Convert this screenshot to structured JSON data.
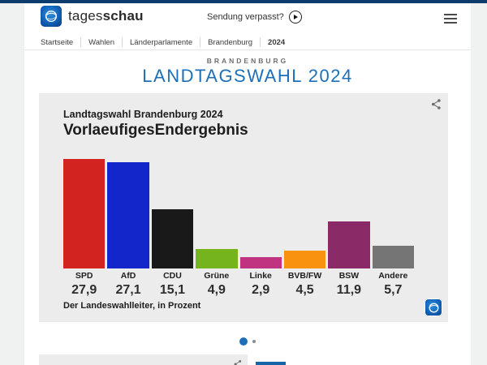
{
  "page": {
    "background": "#f0f1f1",
    "top_strip_color": "#0c3c6e",
    "accent_blue": "#1d70b7"
  },
  "header": {
    "brand": {
      "prefix": "tages",
      "suffix": "schau"
    },
    "broadcast_label": "Sendung verpasst?",
    "icons": [
      "tagesschau-globe-logo",
      "play-icon",
      "menu-icon"
    ]
  },
  "breadcrumb": {
    "items": [
      "Startseite",
      "Wahlen",
      "Länderparlamente",
      "Brandenburg",
      "2024"
    ],
    "current": "2024"
  },
  "hero": {
    "kicker": "BRANDENBURG",
    "title": "LANDTAGSWAHL 2024"
  },
  "chart_card": {
    "subtitle": "Landtagswahl Brandenburg 2024",
    "title": "VorlaeufigesEndergebnis",
    "source": "Der Landeswahlleiter, in Prozent",
    "share_icon": "share-icon",
    "logo_icon": "tagesschau-globe-logo"
  },
  "chart_data": {
    "type": "bar",
    "title": "VorlaeufigesEndergebnis",
    "subtitle": "Landtagswahl Brandenburg 2024",
    "categories": [
      "SPD",
      "AfD",
      "CDU",
      "Grüne",
      "Linke",
      "BVB/FW",
      "BSW",
      "Andere"
    ],
    "values": [
      27.9,
      27.1,
      15.1,
      4.9,
      2.9,
      4.5,
      11.9,
      5.7
    ],
    "value_labels": [
      "27,9",
      "27,1",
      "15,1",
      "4,9",
      "2,9",
      "4,5",
      "11,9",
      "5,7"
    ],
    "colors": [
      "#d32321",
      "#1226c9",
      "#191919",
      "#76b41e",
      "#c03380",
      "#f9920e",
      "#8a2a66",
      "#757575"
    ],
    "unit": "Prozent",
    "source": "Der Landeswahlleiter, in Prozent",
    "ylim": [
      0,
      28.5
    ],
    "grid": false,
    "legend": false
  },
  "pagination": {
    "count": 2,
    "active_index": 0
  }
}
